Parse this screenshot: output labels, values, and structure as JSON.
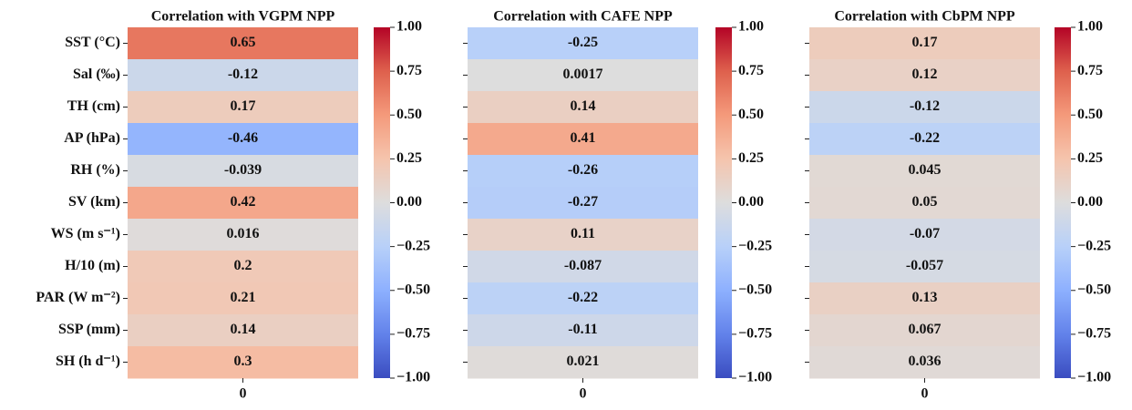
{
  "chart_data": [
    {
      "type": "heatmap",
      "title": "Correlation with VGPM NPP",
      "cmap": "coolwarm",
      "categories": [
        "SST (°C)",
        "Sal (‰)",
        "TH (cm)",
        "AP (hPa)",
        "RH (%)",
        "SV (km)",
        "WS (m s⁻¹)",
        "H/10 (m)",
        "PAR (W m⁻²)",
        "SSP (mm)",
        "SH (h d⁻¹)"
      ],
      "columns": [
        "0"
      ],
      "values": [
        0.65,
        -0.12,
        0.17,
        -0.46,
        -0.039,
        0.42,
        0.016,
        0.2,
        0.21,
        0.14,
        0.3
      ],
      "clim": [
        -1,
        1
      ],
      "cticks": [
        {
          "value": -1,
          "label": "−1.00"
        },
        {
          "value": -0.75,
          "label": "−0.75"
        },
        {
          "value": -0.5,
          "label": "−0.50"
        },
        {
          "value": -0.25,
          "label": "−0.25"
        },
        {
          "value": 0,
          "label": "0.00"
        },
        {
          "value": 0.25,
          "label": "0.25"
        },
        {
          "value": 0.5,
          "label": "0.50"
        },
        {
          "value": 0.75,
          "label": "0.75"
        },
        {
          "value": 1,
          "label": "1.00"
        }
      ]
    },
    {
      "type": "heatmap",
      "title": "Correlation with CAFE NPP",
      "cmap": "coolwarm",
      "categories": [
        null,
        null,
        null,
        null,
        null,
        null,
        null,
        null,
        null,
        null,
        null
      ],
      "columns": [
        "0"
      ],
      "values": [
        -0.25,
        0.0017,
        0.14,
        0.41,
        -0.26,
        -0.27,
        0.11,
        -0.087,
        -0.22,
        -0.11,
        0.021
      ],
      "clim": [
        -1,
        1
      ],
      "cticks": [
        {
          "value": -1,
          "label": "−1.00"
        },
        {
          "value": -0.75,
          "label": "−0.75"
        },
        {
          "value": -0.5,
          "label": "−0.50"
        },
        {
          "value": -0.25,
          "label": "−0.25"
        },
        {
          "value": 0,
          "label": "0.00"
        },
        {
          "value": 0.25,
          "label": "0.25"
        },
        {
          "value": 0.5,
          "label": "0.50"
        },
        {
          "value": 0.75,
          "label": "0.75"
        },
        {
          "value": 1,
          "label": "1.00"
        }
      ]
    },
    {
      "type": "heatmap",
      "title": "Correlation with CbPM NPP",
      "cmap": "coolwarm",
      "categories": [
        null,
        null,
        null,
        null,
        null,
        null,
        null,
        null,
        null,
        null,
        null
      ],
      "columns": [
        "0"
      ],
      "values": [
        0.17,
        0.12,
        -0.12,
        -0.22,
        0.045,
        0.05,
        -0.07,
        -0.057,
        0.13,
        0.067,
        0.036
      ],
      "clim": [
        -1,
        1
      ],
      "cticks": [
        {
          "value": -1,
          "label": "−1.00"
        },
        {
          "value": -0.75,
          "label": "−0.75"
        },
        {
          "value": -0.5,
          "label": "−0.50"
        },
        {
          "value": -0.25,
          "label": "−0.25"
        },
        {
          "value": 0,
          "label": "0.00"
        },
        {
          "value": 0.25,
          "label": "0.25"
        },
        {
          "value": 0.5,
          "label": "0.50"
        },
        {
          "value": 0.75,
          "label": "0.75"
        },
        {
          "value": 1,
          "label": "1.00"
        }
      ]
    }
  ]
}
